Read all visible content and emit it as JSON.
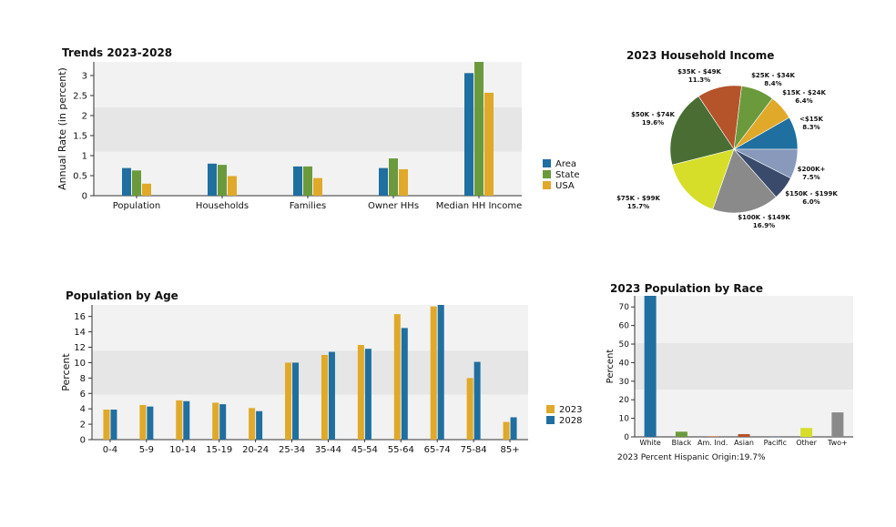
{
  "colors": {
    "area": "#1f6fa0",
    "state": "#6b9a3c",
    "usa": "#e0a92a",
    "y2023": "#e0a92a",
    "y2028": "#1f6fa0",
    "band_light": "#f2f2f2",
    "band_dark": "#e6e6e6"
  },
  "chart_data": [
    {
      "id": "trends",
      "type": "bar",
      "title": "Trends 2023-2028",
      "ylabel": "Annual Rate (in percent)",
      "categories": [
        "Population",
        "Households",
        "Families",
        "Owner HHs",
        "Median HH Income"
      ],
      "series": [
        {
          "name": "Area",
          "color": "#1f6fa0",
          "values": [
            0.69,
            0.8,
            0.73,
            0.69,
            3.06
          ]
        },
        {
          "name": "State",
          "color": "#6b9a3c",
          "values": [
            0.63,
            0.77,
            0.73,
            0.93,
            3.34
          ]
        },
        {
          "name": "USA",
          "color": "#e0a92a",
          "values": [
            0.3,
            0.49,
            0.44,
            0.66,
            2.57
          ]
        }
      ],
      "ylim": [
        0,
        3.34
      ],
      "yticks": [
        0,
        0.5,
        1,
        1.5,
        2,
        2.5,
        3
      ],
      "ytick_labels": [
        "0",
        "0.5",
        "1",
        "1.5",
        "2",
        "2.5",
        "3"
      ]
    },
    {
      "id": "income",
      "type": "pie",
      "title": "2023 Household Income",
      "slices": [
        {
          "label": "<$15K",
          "value": 8.3,
          "pct": "8.3%",
          "color": "#1f6fa0"
        },
        {
          "label": "$15K - $24K",
          "value": 6.4,
          "pct": "6.4%",
          "color": "#e0a92a"
        },
        {
          "label": "$25K - $34K",
          "value": 8.4,
          "pct": "8.4%",
          "color": "#6b9a3c"
        },
        {
          "label": "$35K - $49K",
          "value": 11.3,
          "pct": "11.3%",
          "color": "#b5532a"
        },
        {
          "label": "$50K - $74K",
          "value": 19.6,
          "pct": "19.6%",
          "color": "#4a6d33"
        },
        {
          "label": "$75K - $99K",
          "value": 15.7,
          "pct": "15.7%",
          "color": "#d7de2a"
        },
        {
          "label": "$100K - $149K",
          "value": 16.9,
          "pct": "16.9%",
          "color": "#8a8a8a"
        },
        {
          "label": "$150K - $199K",
          "value": 6.0,
          "pct": "6.0%",
          "color": "#3a4a6b"
        },
        {
          "label": "$200K+",
          "value": 7.5,
          "pct": "7.5%",
          "color": "#8899bb"
        }
      ]
    },
    {
      "id": "age",
      "type": "bar",
      "title": "Population by Age",
      "ylabel": "Percent",
      "categories": [
        "0-4",
        "5-9",
        "10-14",
        "15-19",
        "20-24",
        "25-34",
        "35-44",
        "45-54",
        "55-64",
        "65-74",
        "75-84",
        "85+"
      ],
      "series": [
        {
          "name": "2023",
          "color": "#e0a92a",
          "values": [
            3.9,
            4.5,
            5.1,
            4.8,
            4.1,
            10.0,
            11.0,
            12.3,
            16.3,
            17.3,
            8.0,
            2.3
          ]
        },
        {
          "name": "2028",
          "color": "#1f6fa0",
          "values": [
            3.9,
            4.3,
            5.0,
            4.6,
            3.7,
            10.0,
            11.4,
            11.8,
            14.5,
            17.5,
            10.1,
            2.9
          ]
        }
      ],
      "ylim": [
        0,
        17.5
      ],
      "yticks": [
        0,
        2,
        4,
        6,
        8,
        10,
        12,
        14,
        16
      ],
      "ytick_labels": [
        "0",
        "2",
        "4",
        "6",
        "8",
        "10",
        "12",
        "14",
        "16"
      ]
    },
    {
      "id": "race",
      "type": "bar",
      "title": "2023 Population by Race",
      "ylabel": "Percent",
      "categories": [
        "White",
        "Black",
        "Am. Ind.",
        "Asian",
        "Pacific",
        "Other",
        "Two+"
      ],
      "values": [
        76.0,
        2.8,
        0.3,
        1.5,
        0.1,
        4.8,
        13.2
      ],
      "colors": [
        "#1f6fa0",
        "#6b9a3c",
        "#b5532a",
        "#b5532a",
        "#3a4a6b",
        "#d7de2a",
        "#8a8a8a"
      ],
      "ylim": [
        0,
        76
      ],
      "yticks": [
        0,
        10,
        20,
        30,
        40,
        50,
        60,
        70
      ],
      "ytick_labels": [
        "0",
        "10",
        "20",
        "30",
        "40",
        "50",
        "60",
        "70"
      ],
      "note": "2023 Percent Hispanic Origin:19.7%"
    }
  ]
}
